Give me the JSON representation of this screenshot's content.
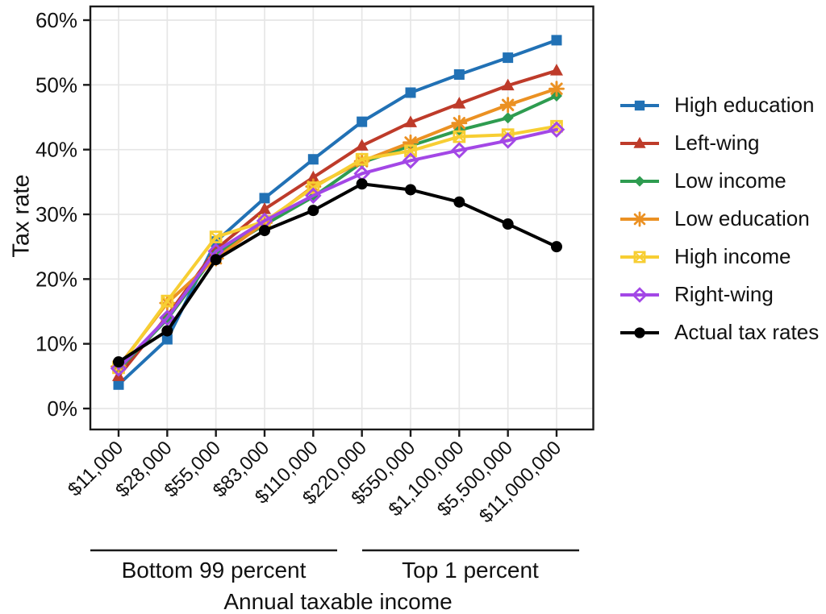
{
  "chart_data": {
    "type": "line",
    "title": "",
    "xlabel": "Annual taxable income",
    "ylabel": "Tax rate",
    "categories": [
      "$11,000",
      "$28,000",
      "$55,000",
      "$83,000",
      "$110,000",
      "$220,000",
      "$550,000",
      "$1,100,000",
      "$5,500,000",
      "$11,000,000"
    ],
    "y_tick_values": [
      0,
      10,
      20,
      30,
      40,
      50,
      60
    ],
    "y_tick_labels": [
      "0%",
      "10%",
      "20%",
      "30%",
      "40%",
      "50%",
      "60%"
    ],
    "ylim": [
      0,
      62
    ],
    "grid": "major gridlines only, light gray, horizontal and vertical",
    "legend_position": "right",
    "panel_border_color": "#1a1a1a",
    "gridline_color": "#e6e6e6",
    "series": [
      {
        "name": "High education",
        "color": "#2171B5",
        "marker": "filled-square",
        "values": [
          3.7,
          10.7,
          25.8,
          32.5,
          38.5,
          44.3,
          48.8,
          51.6,
          54.2,
          56.9
        ]
      },
      {
        "name": "Left-wing",
        "color": "#BE3B2A",
        "marker": "filled-triangle",
        "values": [
          5.0,
          14.3,
          24.6,
          30.8,
          35.7,
          40.6,
          44.2,
          47.1,
          49.9,
          52.2
        ]
      },
      {
        "name": "Low income",
        "color": "#2E9C50",
        "marker": "filled-diamond",
        "values": [
          6.0,
          13.8,
          23.9,
          28.4,
          32.7,
          38.0,
          40.6,
          43.0,
          44.9,
          48.3
        ]
      },
      {
        "name": "Low education",
        "color": "#EB9123",
        "marker": "asterisk",
        "values": [
          6.5,
          16.3,
          23.2,
          28.7,
          34.3,
          38.2,
          41.1,
          44.1,
          46.9,
          49.4
        ]
      },
      {
        "name": "High income",
        "color": "#F7CE33",
        "marker": "open-square-x",
        "values": [
          6.3,
          16.6,
          26.5,
          28.9,
          34.1,
          38.5,
          39.8,
          42.0,
          42.3,
          43.6
        ]
      },
      {
        "name": "Right-wing",
        "color": "#A347E6",
        "marker": "open-diamond",
        "values": [
          6.2,
          14.0,
          24.3,
          29.0,
          32.9,
          36.3,
          38.3,
          39.9,
          41.4,
          43.1
        ]
      },
      {
        "name": "Actual tax rates",
        "color": "#000000",
        "marker": "filled-circle",
        "values": [
          7.2,
          12.0,
          23.0,
          27.5,
          30.6,
          34.7,
          33.8,
          31.9,
          28.5,
          25.0
        ]
      }
    ],
    "annotations": [
      {
        "label": "Bottom 99 percent",
        "span_categories": [
          "$11,000",
          "$110,000"
        ]
      },
      {
        "label": "Top 1 percent",
        "span_categories": [
          "$220,000",
          "$11,000,000"
        ]
      }
    ]
  }
}
